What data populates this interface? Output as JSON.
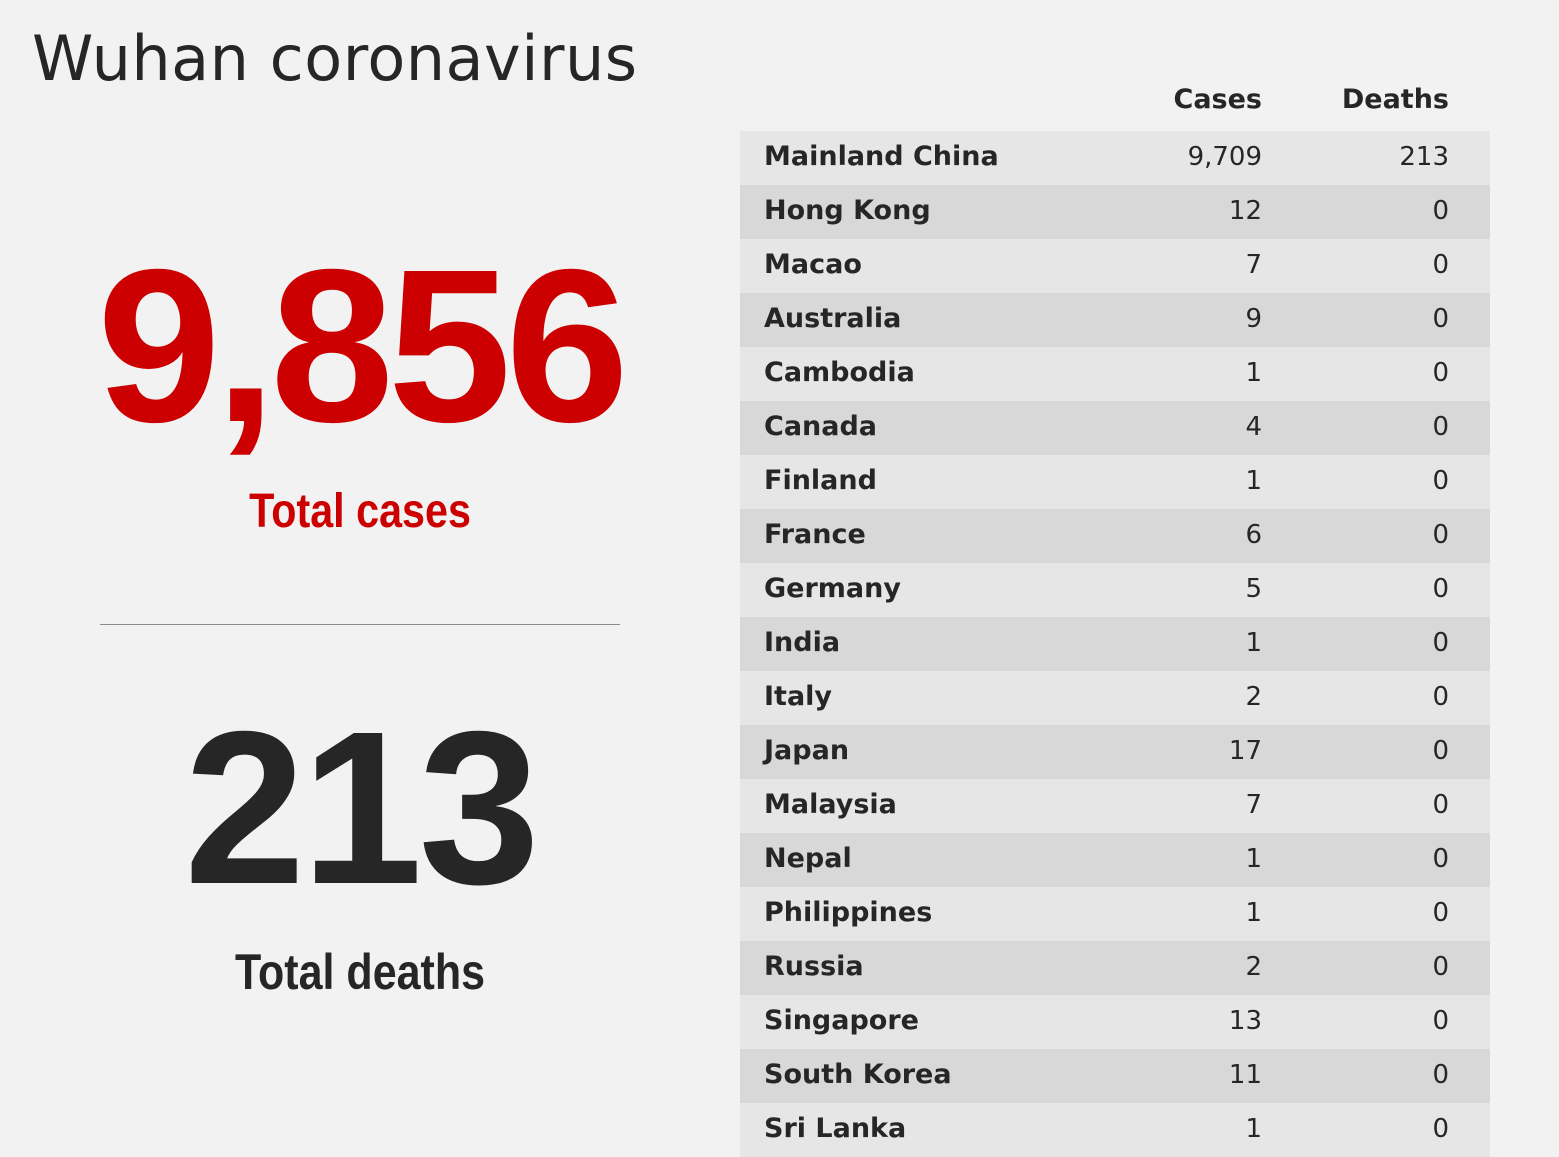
{
  "title": "Wuhan coronavirus",
  "summary": {
    "total_cases_value": "9,856",
    "total_cases_label": "Total cases",
    "total_deaths_value": "213",
    "total_deaths_label": "Total deaths"
  },
  "colors": {
    "accent_red": "#cc0000",
    "text_dark": "#262626",
    "background": "#f2f2f2",
    "row_light": "#e6e6e6",
    "row_dark": "#d8d8d8"
  },
  "table": {
    "headers": {
      "cases": "Cases",
      "deaths": "Deaths"
    },
    "rows": [
      {
        "country": "Mainland China",
        "cases": "9,709",
        "deaths": "213"
      },
      {
        "country": "Hong Kong",
        "cases": "12",
        "deaths": "0"
      },
      {
        "country": "Macao",
        "cases": "7",
        "deaths": "0"
      },
      {
        "country": "Australia",
        "cases": "9",
        "deaths": "0"
      },
      {
        "country": "Cambodia",
        "cases": "1",
        "deaths": "0"
      },
      {
        "country": "Canada",
        "cases": "4",
        "deaths": "0"
      },
      {
        "country": "Finland",
        "cases": "1",
        "deaths": "0"
      },
      {
        "country": "France",
        "cases": "6",
        "deaths": "0"
      },
      {
        "country": "Germany",
        "cases": "5",
        "deaths": "0"
      },
      {
        "country": "India",
        "cases": "1",
        "deaths": "0"
      },
      {
        "country": "Italy",
        "cases": "2",
        "deaths": "0"
      },
      {
        "country": "Japan",
        "cases": "17",
        "deaths": "0"
      },
      {
        "country": "Malaysia",
        "cases": "7",
        "deaths": "0"
      },
      {
        "country": "Nepal",
        "cases": "1",
        "deaths": "0"
      },
      {
        "country": "Philippines",
        "cases": "1",
        "deaths": "0"
      },
      {
        "country": "Russia",
        "cases": "2",
        "deaths": "0"
      },
      {
        "country": "Singapore",
        "cases": "13",
        "deaths": "0"
      },
      {
        "country": "South Korea",
        "cases": "11",
        "deaths": "0"
      },
      {
        "country": "Sri Lanka",
        "cases": "1",
        "deaths": "0"
      }
    ]
  }
}
